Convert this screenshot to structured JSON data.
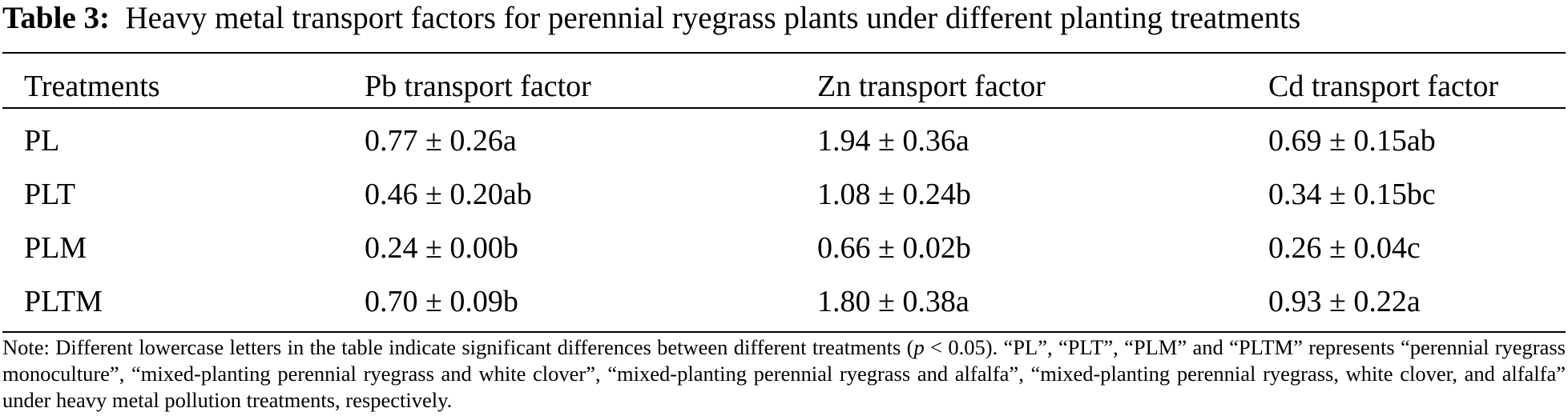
{
  "caption": {
    "label": "Table 3:",
    "title": "Heavy metal transport factors for perennial ryegrass plants under different planting treatments"
  },
  "table": {
    "headers": [
      "Treatments",
      "Pb transport factor",
      "Zn transport factor",
      "Cd transport factor"
    ],
    "rows": [
      [
        "PL",
        "0.77 ± 0.26a",
        "1.94 ± 0.36a",
        "0.69 ± 0.15ab"
      ],
      [
        "PLT",
        "0.46 ± 0.20ab",
        "1.08 ± 0.24b",
        "0.34 ± 0.15bc"
      ],
      [
        "PLM",
        "0.24 ± 0.00b",
        "0.66 ± 0.02b",
        "0.26 ± 0.04c"
      ],
      [
        "PLTM",
        "0.70 ± 0.09b",
        "1.80 ± 0.38a",
        "0.93 ± 0.22a"
      ]
    ]
  },
  "note": {
    "part1": "Note: Different lowercase letters in the table indicate significant differences between different treatments (",
    "italic": "p",
    "part2": " < 0.05). “PL”, “PLT”, “PLM” and “PLTM” represents “perennial ryegrass monoculture”, “mixed-planting perennial ryegrass and white clover”, “mixed-planting perennial ryegrass and alfalfa”, “mixed-planting perennial ryegrass, white clover, and alfalfa” under heavy metal pollution treatments, respectively."
  }
}
